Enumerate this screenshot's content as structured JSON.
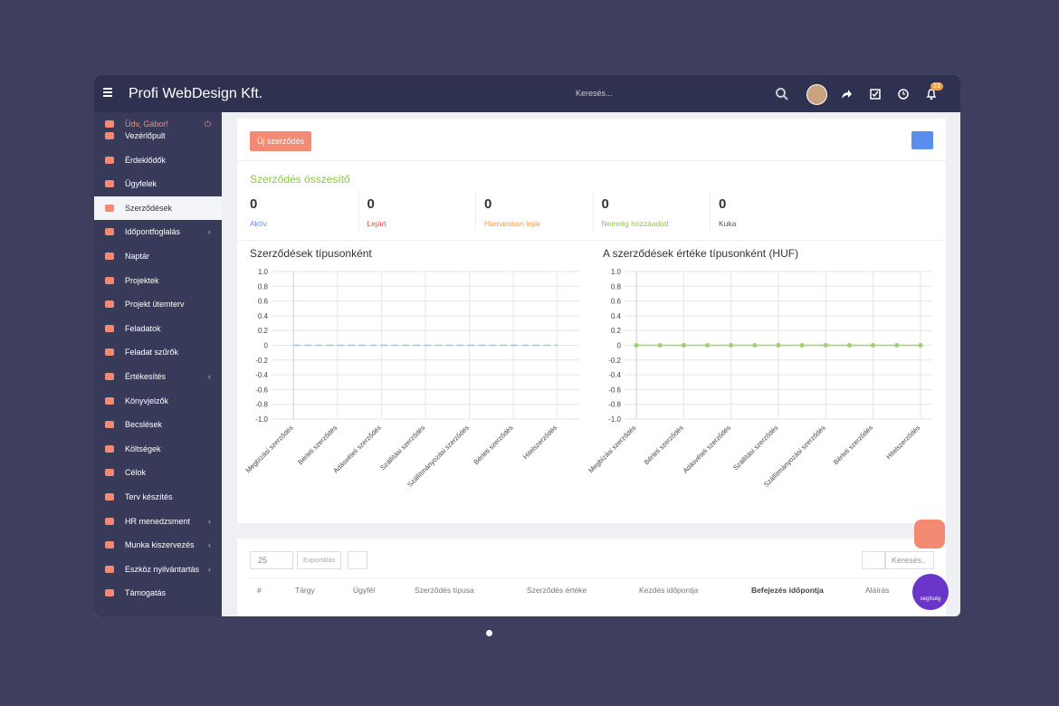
{
  "header": {
    "brand": "Profi WebDesign Kft.",
    "search": "Keresés...",
    "notification_count": "23"
  },
  "sidebar": {
    "greeting": "Üdv, Gábor!",
    "items": [
      {
        "label": "Vezérlőpult",
        "submenu": false
      },
      {
        "label": "Érdeklődők",
        "submenu": false
      },
      {
        "label": "Ügyfelek",
        "submenu": false
      },
      {
        "label": "Szerződések",
        "submenu": false
      },
      {
        "label": "Időpontfoglalás",
        "submenu": true
      },
      {
        "label": "Naptár",
        "submenu": false
      },
      {
        "label": "Projektek",
        "submenu": false
      },
      {
        "label": "Projekt ütemterv",
        "submenu": false
      },
      {
        "label": "Feladatok",
        "submenu": false
      },
      {
        "label": "Feladat szűrők",
        "submenu": false
      },
      {
        "label": "Értékesítés",
        "submenu": true
      },
      {
        "label": "Könyvjelzők",
        "submenu": false
      },
      {
        "label": "Becslések",
        "submenu": false
      },
      {
        "label": "Költségek",
        "submenu": false
      },
      {
        "label": "Célok",
        "submenu": false
      },
      {
        "label": "Terv készítés",
        "submenu": false
      },
      {
        "label": "HR menedzsment",
        "submenu": true
      },
      {
        "label": "Munka kiszervezés",
        "submenu": true
      },
      {
        "label": "Eszköz nyilvántartás",
        "submenu": true
      },
      {
        "label": "Támogatás",
        "submenu": false
      }
    ]
  },
  "toolbar": {
    "new_button": "Új szerződés"
  },
  "summary": {
    "title": "Szerződés összesítő",
    "stats": [
      {
        "value": 0,
        "label": "Aktív"
      },
      {
        "value": 0,
        "label": "Lejárt"
      },
      {
        "value": 0,
        "label": "Hamarosan lejár"
      },
      {
        "value": 0,
        "label": "Nemrég hozzáadott"
      },
      {
        "value": 0,
        "label": "Kuka"
      }
    ]
  },
  "chart_data": [
    {
      "type": "line",
      "title": "Szerződések típusonként",
      "categories": [
        "Megbízási szerződés",
        "Bérleti szerződés",
        "Adásvételi szerződés",
        "Szállítási szerződés",
        "Szállítmányozási szerződés",
        "Bérleti szerződés",
        "Hitelszerződés"
      ],
      "values": [
        0,
        0,
        0,
        0,
        0,
        0,
        0
      ],
      "color": "#7fd3e6",
      "dashed": true,
      "markers": false,
      "ylim": [
        -1,
        1
      ],
      "yticks": [
        {
          "value": 1,
          "label": "1.0"
        },
        0.8,
        0.6,
        0.4,
        0.2,
        0,
        -0.2,
        -0.4,
        -0.6,
        -0.8,
        {
          "value": -1,
          "label": "-1.0"
        }
      ],
      "grid": true
    },
    {
      "type": "line",
      "title": "A szerződések értéke típusonként (HUF)",
      "categories": [
        "Megbízási szerződés",
        null,
        "Bérleti szerződés",
        null,
        "Adásvételi szerződés",
        null,
        "Szállítási szerződés",
        null,
        "Szállítmányozási szerződés",
        null,
        "Bérleti szerződés",
        null,
        "Hitelszerződés"
      ],
      "values": [
        0,
        0,
        0,
        0,
        0,
        0,
        0,
        0,
        0,
        0,
        0,
        0,
        0
      ],
      "color": "#9bd36a",
      "dashed": false,
      "markers": true,
      "ylim": [
        -1,
        1
      ],
      "yticks": [
        {
          "value": 1,
          "label": "1.0"
        },
        0.8,
        0.6,
        0.4,
        0.2,
        0,
        -0.2,
        -0.4,
        -0.6,
        -0.8,
        {
          "value": -1,
          "label": "-1.0"
        }
      ],
      "grid": true
    }
  ],
  "table": {
    "page_size": "25",
    "export": "Exportálás",
    "search": "Keresés..",
    "columns": [
      "#",
      "Tárgy",
      "Ügyfél",
      "Szerződés típusa",
      "Szerződés értéke",
      "Kezdés időpontja",
      "Befejezés időpontja",
      "Aláírás"
    ]
  },
  "help": {
    "label": "segítség"
  }
}
